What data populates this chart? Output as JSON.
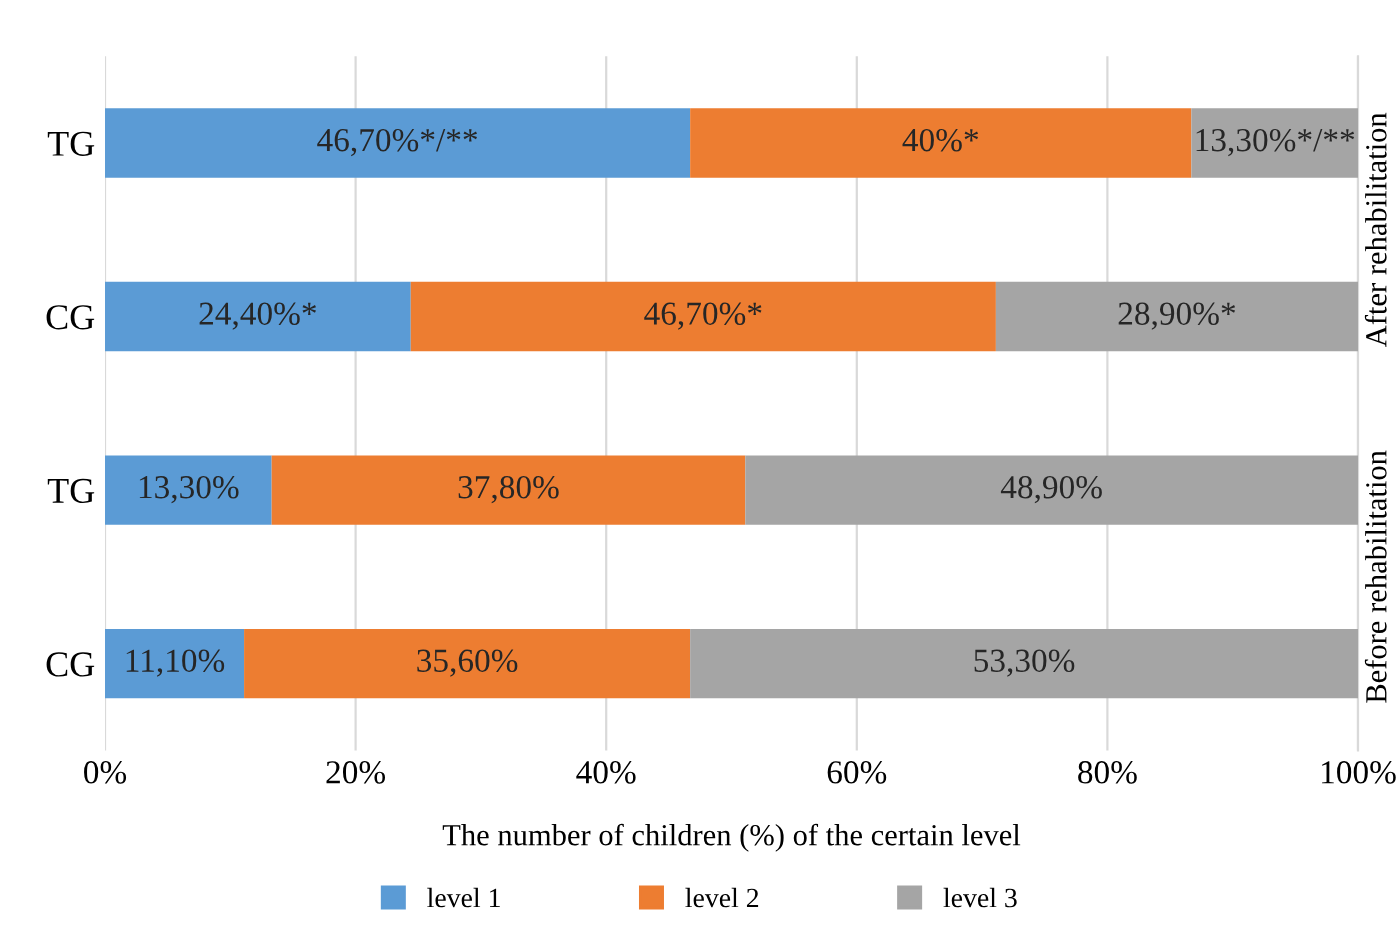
{
  "chart_data": {
    "type": "bar",
    "orientation": "horizontal",
    "stacked": true,
    "xlabel": "The number of children (%) of the certain level",
    "categories": [
      "TG",
      "CG",
      "TG",
      "CG"
    ],
    "series": [
      {
        "name": "level 1",
        "color": "#5b9bd5",
        "values": [
          46.7,
          24.4,
          13.3,
          11.1
        ],
        "value_labels": [
          "46,70%*/**",
          "24,40%*",
          "13,30%",
          "11,10%"
        ]
      },
      {
        "name": "level 2",
        "color": "#ed7d31",
        "values": [
          40,
          46.7,
          37.8,
          35.6
        ],
        "value_labels": [
          "40%*",
          "46,70%*",
          "37,80%",
          "35,60%"
        ]
      },
      {
        "name": "level 3",
        "color": "#a5a5a5",
        "values": [
          13.3,
          28.9,
          48.9,
          53.3
        ],
        "value_labels": [
          "13,30%*/**",
          "28,90%*",
          "48,90%",
          "53,30%"
        ]
      }
    ],
    "xlim": [
      0,
      100
    ],
    "xticks": [
      {
        "value": 0,
        "label": "0%"
      },
      {
        "value": 20,
        "label": "20%"
      },
      {
        "value": 40,
        "label": "40%"
      },
      {
        "value": 60,
        "label": "60%"
      },
      {
        "value": 80,
        "label": "80%"
      },
      {
        "value": 100,
        "label": "100%"
      }
    ],
    "grid": "x",
    "legend": "bottom",
    "annotations": [
      "After rehabilitation",
      "Before rehabilitation"
    ]
  }
}
